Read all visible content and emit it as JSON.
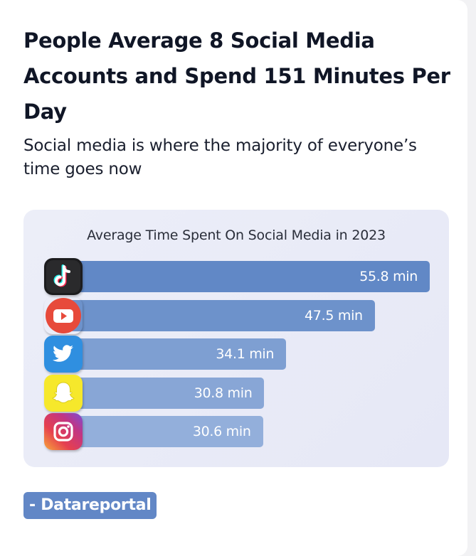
{
  "header": {
    "title": "People Average 8 Social Media Accounts and Spend 151 Minutes Per Day",
    "subtitle": "Social media is where the majority of everyone’s time goes now"
  },
  "chart_data": {
    "type": "bar",
    "orientation": "horizontal",
    "title": "Average Time Spent On Social Media in 2023",
    "categories": [
      "TikTok",
      "YouTube",
      "Twitter",
      "Snapchat",
      "Instagram"
    ],
    "category_icons": [
      "tiktok-icon",
      "youtube-icon",
      "twitter-icon",
      "snapchat-icon",
      "instagram-icon"
    ],
    "values": [
      55.8,
      47.5,
      34.1,
      30.8,
      30.6
    ],
    "value_labels": [
      "55.8 min",
      "47.5 min",
      "34.1 min",
      "30.8 min",
      "30.6 min"
    ],
    "unit": "min",
    "xlim": [
      0,
      55.8
    ],
    "grid": false,
    "legend": "none",
    "bar_colors": [
      "#6188c6",
      "#6d92cb",
      "#7e9fd2",
      "#88a6d6",
      "#93afdb"
    ]
  },
  "source": {
    "label": "- Datareportal"
  },
  "colors": {
    "source_badge": "#6287c6",
    "title": "#101626",
    "panel": "#e8eaf7"
  }
}
